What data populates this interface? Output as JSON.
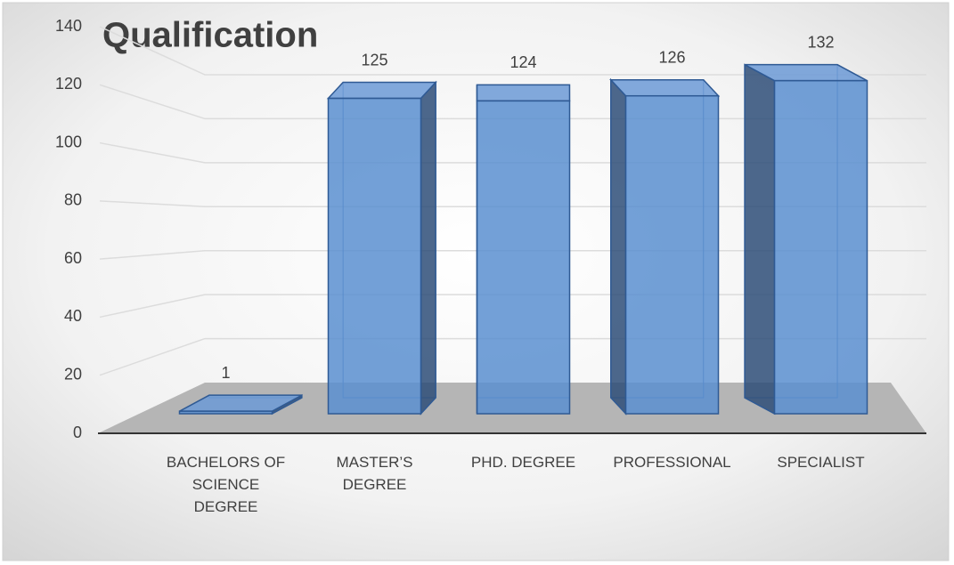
{
  "chart_data": {
    "type": "bar3d",
    "title": "Qualification",
    "categories": [
      "BACHELORS OF SCIENCE DEGREE",
      "MASTER’S DEGREE",
      "PHD. DEGREE",
      "PROFESSIONAL",
      "SPECIALIST"
    ],
    "values": [
      1,
      125,
      124,
      126,
      132
    ],
    "color": "#5b8fd0",
    "ylim": [
      0,
      140
    ],
    "yticks": [
      0,
      20,
      40,
      60,
      80,
      100,
      120,
      140
    ],
    "grid": true
  }
}
